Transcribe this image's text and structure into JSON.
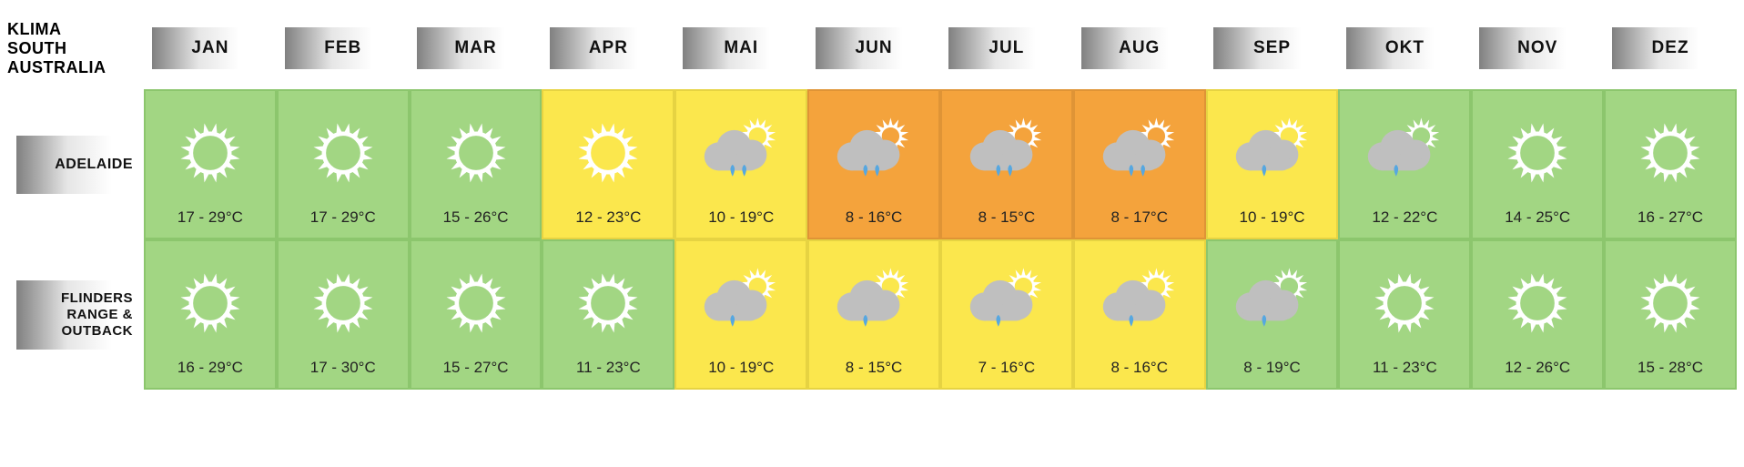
{
  "title_lines": [
    "KLIMA",
    "SOUTH",
    "AUSTRALIA"
  ],
  "title_fontsize": 18,
  "months": [
    "JAN",
    "FEB",
    "MAR",
    "APR",
    "MAI",
    "JUN",
    "JUL",
    "AUG",
    "SEP",
    "OKT",
    "NOV",
    "DEZ"
  ],
  "month_fontsize": 19,
  "region_fontsize": 16,
  "temp_fontsize": 17,
  "pill_gradient_from": "#808080",
  "pill_gradient_mid": "#e6e6e6",
  "pill_gradient_to": "#ffffff",
  "divider_color": "#bfbfbf",
  "colors": {
    "green": {
      "fill": "#a2d683",
      "border": "#8cc66d"
    },
    "yellow": {
      "fill": "#fbe74d",
      "border": "#e6d342"
    },
    "orange": {
      "fill": "#f4a33c",
      "border": "#df9436"
    }
  },
  "icon_palette": {
    "sun_white": "#ffffff",
    "sun_yellow": "#fbe74d",
    "sun_orange": "#f4a33c",
    "cloud": "#bfbfbf",
    "rain": "#56a7e0"
  },
  "regions": [
    {
      "name": "ADELAIDE",
      "cells": [
        {
          "bg": "green",
          "icon": "sun_white",
          "temp": "17 - 29°C"
        },
        {
          "bg": "green",
          "icon": "sun_white",
          "temp": "17 - 29°C"
        },
        {
          "bg": "green",
          "icon": "sun_white",
          "temp": "15 - 26°C"
        },
        {
          "bg": "yellow",
          "icon": "sun_white",
          "temp": "12 - 23°C"
        },
        {
          "bg": "yellow",
          "icon": "cloud_sun_rain2",
          "temp": "10 - 19°C"
        },
        {
          "bg": "orange",
          "icon": "cloud_sun_rain2_o",
          "temp": "8 - 16°C"
        },
        {
          "bg": "orange",
          "icon": "cloud_sun_rain2_o",
          "temp": "8 - 15°C"
        },
        {
          "bg": "orange",
          "icon": "cloud_sun_rain2_o",
          "temp": "8 - 17°C"
        },
        {
          "bg": "yellow",
          "icon": "cloud_sun_rain1",
          "temp": "10 - 19°C"
        },
        {
          "bg": "green",
          "icon": "cloud_sun_rain1_w",
          "temp": "12 - 22°C"
        },
        {
          "bg": "green",
          "icon": "sun_white",
          "temp": "14 - 25°C"
        },
        {
          "bg": "green",
          "icon": "sun_white",
          "temp": "16 - 27°C"
        }
      ]
    },
    {
      "name": "FLINDERS RANGE & OUTBACK",
      "cells": [
        {
          "bg": "green",
          "icon": "sun_white",
          "temp": "16 - 29°C"
        },
        {
          "bg": "green",
          "icon": "sun_white",
          "temp": "17 - 30°C"
        },
        {
          "bg": "green",
          "icon": "sun_white",
          "temp": "15 - 27°C"
        },
        {
          "bg": "green",
          "icon": "sun_white",
          "temp": "11 - 23°C"
        },
        {
          "bg": "yellow",
          "icon": "cloud_sun_rain1",
          "temp": "10 - 19°C"
        },
        {
          "bg": "yellow",
          "icon": "cloud_sun_rain1",
          "temp": "8 - 15°C"
        },
        {
          "bg": "yellow",
          "icon": "cloud_sun_rain1",
          "temp": "7 - 16°C"
        },
        {
          "bg": "yellow",
          "icon": "cloud_sun_rain1",
          "temp": "8 - 16°C"
        },
        {
          "bg": "green",
          "icon": "cloud_sun_rain1_w",
          "temp": "8 - 19°C"
        },
        {
          "bg": "green",
          "icon": "sun_white",
          "temp": "11 - 23°C"
        },
        {
          "bg": "green",
          "icon": "sun_white",
          "temp": "12 - 26°C"
        },
        {
          "bg": "green",
          "icon": "sun_white",
          "temp": "15 - 28°C"
        }
      ]
    }
  ]
}
